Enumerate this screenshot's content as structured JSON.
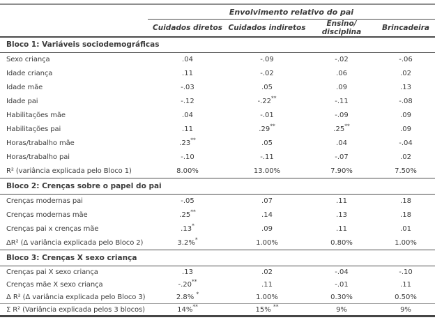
{
  "colors": {
    "text": "#3b3b3b",
    "rule_dark": "#4a4a4a",
    "rule_top_gray": "#8f8f8f",
    "background": "#ffffff"
  },
  "table": {
    "spanner": "Envolvimento relativo do pai",
    "columns": [
      "Cuidados diretos",
      "Cuidados indiretos",
      "Ensino/ disciplina",
      "Brincadeira"
    ],
    "blocks": [
      {
        "title": "Bloco 1: Variáveis sociodemográficas",
        "rows": [
          {
            "label": "Sexo criança",
            "values": [
              ".04",
              "-.09",
              "-.02",
              "-.06"
            ]
          },
          {
            "label": "Idade criança",
            "values": [
              ".11",
              "-.02",
              ".06",
              ".02"
            ]
          },
          {
            "label": "Idade mãe",
            "values": [
              "-.03",
              ".05",
              ".09",
              ".13"
            ]
          },
          {
            "label": "Idade pai",
            "values": [
              "-.12",
              "-.22**",
              "-.11",
              "-.08"
            ]
          },
          {
            "label": "Habilitações mãe",
            "values": [
              ".04",
              "-.01",
              "-.09",
              ".09"
            ]
          },
          {
            "label": "Habilitações pai",
            "values": [
              ".11",
              ".29**",
              ".25**",
              ".09"
            ]
          },
          {
            "label": "Horas/trabalho mãe",
            "values": [
              ".23**",
              ".05",
              ".04",
              "-.04"
            ]
          },
          {
            "label": "Horas/trabalho pai",
            "values": [
              "-.10",
              "-.11",
              "-.07",
              ".02"
            ]
          },
          {
            "label": "R² (variância explicada pelo Bloco 1)",
            "values": [
              "8.00%",
              "13.00%",
              "7.90%",
              "7.50%"
            ]
          }
        ]
      },
      {
        "title": "Bloco 2: Crenças sobre o papel do pai",
        "rows": [
          {
            "label": "Crenças modernas pai",
            "values": [
              "-.05",
              ".07",
              ".11",
              ".18"
            ]
          },
          {
            "label": "Crenças modernas mãe",
            "values": [
              ".25**",
              ".14",
              ".13",
              ".18"
            ]
          },
          {
            "label": "Crenças pai x crenças mãe",
            "values": [
              ".13*",
              ".09",
              ".11",
              ".01"
            ]
          },
          {
            "label": "ΔR² (Δ variância explicada pelo Bloco 2)",
            "values": [
              "3.2%*",
              "1.00%",
              "0.80%",
              "1.00%"
            ]
          }
        ]
      },
      {
        "title": "Bloco 3: Crenças X sexo criança",
        "rows": [
          {
            "label": "Crenças pai X sexo criança",
            "values": [
              ".13",
              ".02",
              "-.04",
              "-.10"
            ]
          },
          {
            "label": "Crenças mãe X sexo criança",
            "values": [
              "-.20**",
              ".11",
              "-.01",
              ".11"
            ]
          },
          {
            "label": "Δ R² (Δ variância explicada pelo Bloco 3)",
            "values": [
              "2.8% *",
              "1.00%",
              "0.30%",
              "0.50%"
            ]
          },
          {
            "label": "Σ R² (Variância explicada pelos 3 blocos)",
            "values": [
              "14%**",
              "15% **",
              "9%",
              "9%"
            ]
          }
        ]
      }
    ]
  }
}
